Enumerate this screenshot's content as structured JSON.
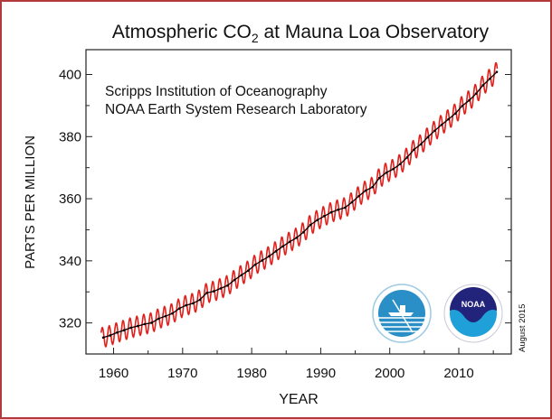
{
  "chart_data": {
    "type": "line",
    "title": "Atmospheric CO",
    "title_subscript": "2",
    "title_suffix": " at Mauna Loa Observatory",
    "annotations": [
      "Scripps Institution of Oceanography",
      "NOAA Earth System Research Laboratory"
    ],
    "date_note": "August 2015",
    "xlabel": "YEAR",
    "ylabel": "PARTS PER MILLION",
    "xlim": [
      1956,
      2017.6
    ],
    "ylim": [
      310,
      408
    ],
    "xticks": [
      1960,
      1970,
      1980,
      1990,
      2000,
      2010
    ],
    "yticks": [
      320,
      340,
      360,
      380,
      400
    ],
    "grid": false,
    "logos": [
      "scripps-sio-logo",
      "noaa-logo"
    ],
    "colors": {
      "monthly": "#e0201b",
      "trend": "#000000",
      "frame": "#b23a3a"
    },
    "seasonal_amplitude_ppm": 3.2,
    "series": [
      {
        "style": "monthly mean (red, seasonal cycle)"
      },
      {
        "style": "annual trend (black)"
      }
    ],
    "x": [
      1958.5,
      1959.5,
      1960.5,
      1961.5,
      1962.5,
      1963.5,
      1964.5,
      1965.5,
      1966.5,
      1967.5,
      1968.5,
      1969.5,
      1970.5,
      1971.5,
      1972.5,
      1973.5,
      1974.5,
      1975.5,
      1976.5,
      1977.5,
      1978.5,
      1979.5,
      1980.5,
      1981.5,
      1982.5,
      1983.5,
      1984.5,
      1985.5,
      1986.5,
      1987.5,
      1988.5,
      1989.5,
      1990.5,
      1991.5,
      1992.5,
      1993.5,
      1994.5,
      1995.5,
      1996.5,
      1997.5,
      1998.5,
      1999.5,
      2000.5,
      2001.5,
      2002.5,
      2003.5,
      2004.5,
      2005.5,
      2006.5,
      2007.5,
      2008.5,
      2009.5,
      2010.5,
      2011.5,
      2012.5,
      2013.5,
      2014.5,
      2015.5
    ],
    "trend_ppm": [
      315.3,
      315.97,
      316.91,
      317.64,
      318.45,
      318.99,
      319.62,
      320.04,
      321.38,
      322.16,
      323.04,
      324.62,
      325.68,
      326.32,
      327.45,
      329.68,
      330.18,
      331.11,
      332.04,
      333.83,
      335.4,
      336.84,
      338.75,
      340.11,
      341.45,
      343.05,
      344.65,
      346.12,
      347.42,
      349.19,
      351.57,
      353.12,
      354.39,
      355.61,
      356.45,
      357.1,
      358.83,
      360.82,
      362.61,
      363.73,
      366.7,
      368.38,
      369.55,
      371.14,
      373.28,
      375.8,
      377.52,
      379.8,
      381.9,
      383.79,
      385.6,
      387.43,
      389.9,
      391.65,
      393.85,
      396.52,
      398.65,
      400.83
    ]
  }
}
